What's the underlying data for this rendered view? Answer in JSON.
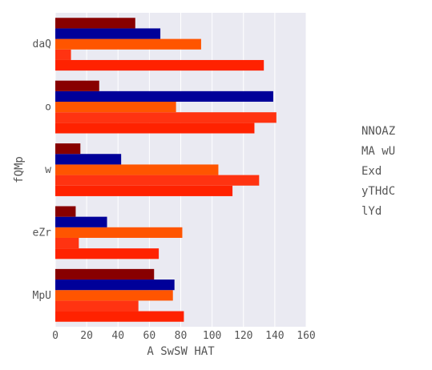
{
  "chart_data": {
    "type": "bar",
    "orientation": "horizontal",
    "categories": [
      "MpU",
      "eZr",
      "w",
      "o",
      "daQ"
    ],
    "series": [
      {
        "name": "NNOAZ",
        "color": "#FF2200",
        "values": [
          82,
          66,
          113,
          127,
          133
        ]
      },
      {
        "name": "MA wU",
        "color": "#FF3311",
        "values": [
          53,
          15,
          130,
          141,
          10
        ]
      },
      {
        "name": "Exd",
        "color": "#FF5500",
        "values": [
          75,
          81,
          104,
          77,
          93
        ]
      },
      {
        "name": "yTHdC",
        "color": "#000099",
        "values": [
          76,
          33,
          42,
          139,
          67
        ]
      },
      {
        "name": "lYd",
        "color": "#880000",
        "values": [
          63,
          13,
          16,
          28,
          51
        ]
      }
    ],
    "xlabel": "A SwSW HAT",
    "ylabel": "fQMp",
    "xlim": [
      0,
      160
    ],
    "xticks": [
      0,
      20,
      40,
      60,
      80,
      100,
      120,
      140,
      160
    ],
    "grid": true,
    "legend_position": "right",
    "background": "#EAEAF2"
  }
}
